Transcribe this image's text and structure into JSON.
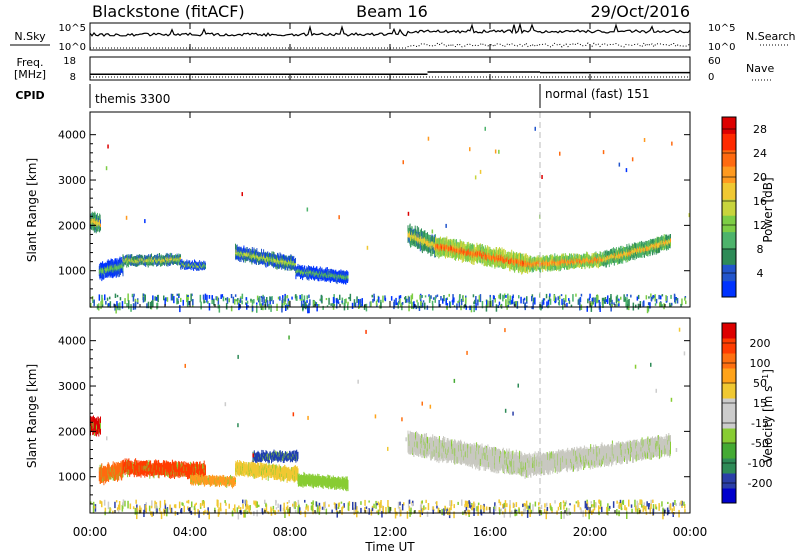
{
  "header": {
    "station": "Blackstone (fitACF)",
    "beam": "Beam 16",
    "date": "29/Oct/2016"
  },
  "time_axis": {
    "ticks": [
      "00:00",
      "04:00",
      "08:00",
      "12:00",
      "16:00",
      "20:00",
      "00:00"
    ],
    "tick_hours": [
      0,
      4,
      8,
      12,
      16,
      20,
      24
    ],
    "label": "Time UT",
    "range_hours": [
      0,
      24
    ]
  },
  "strips": {
    "nsky": {
      "left_label": "N.Sky",
      "right_label": "N.Search",
      "left_ticks": [
        "10^5",
        "10^0"
      ],
      "right_ticks": [
        "10^5",
        "10^0"
      ]
    },
    "freq": {
      "left_label_1": "Freq.",
      "left_label_2": "[MHz]",
      "right_label": "Nave",
      "left_ticks": [
        "18",
        "8"
      ],
      "right_ticks": [
        "60",
        "0"
      ],
      "freq_segments": [
        {
          "start": 0.0,
          "end": 13.5,
          "value": 10.5
        },
        {
          "start": 13.5,
          "end": 18.0,
          "value": 11.5
        },
        {
          "start": 18.0,
          "end": 24.0,
          "value": 11.2
        }
      ]
    },
    "cpid": {
      "label": "CPID",
      "modes": [
        {
          "start": 0.0,
          "text": "themis 3300"
        },
        {
          "start": 18.0,
          "text": "normal (fast) 151"
        }
      ]
    }
  },
  "chart_data": [
    {
      "type": "heatmap",
      "parameter": "Power",
      "ylabel": "Slant Range [km]",
      "yticks": [
        1000,
        2000,
        3000,
        4000
      ],
      "ylim": [
        200,
        4500
      ],
      "colorbar": {
        "label": "Power [dB]",
        "ticks": [
          "4",
          "8",
          "12",
          "16",
          "20",
          "24",
          "28"
        ],
        "range": [
          0,
          30
        ],
        "colors": [
          "#0033ff",
          "#2255cc",
          "#2e8b57",
          "#4db36b",
          "#7dcd45",
          "#c8d43c",
          "#f0c832",
          "#ff9a1f",
          "#ff6a10",
          "#ff2a00",
          "#dd0000"
        ]
      },
      "echo_bands": [
        {
          "start": 0.0,
          "end": 0.4,
          "center_start": 2100,
          "center_end": 2050,
          "width": 380,
          "level": 0.55
        },
        {
          "start": 0.35,
          "end": 1.3,
          "center_start": 1000,
          "center_end": 1100,
          "width": 360,
          "level": 0.35
        },
        {
          "start": 1.3,
          "end": 3.6,
          "center_start": 1230,
          "center_end": 1250,
          "width": 220,
          "level": 0.5
        },
        {
          "start": 3.6,
          "end": 4.6,
          "center_start": 1150,
          "center_end": 1100,
          "width": 160,
          "level": 0.4
        },
        {
          "start": 5.8,
          "end": 8.2,
          "center_start": 1400,
          "center_end": 1150,
          "width": 300,
          "level": 0.45
        },
        {
          "start": 8.2,
          "end": 10.3,
          "center_start": 1000,
          "center_end": 850,
          "width": 250,
          "level": 0.35
        },
        {
          "start": 12.7,
          "end": 13.8,
          "center_start": 1800,
          "center_end": 1550,
          "width": 450,
          "level": 0.55
        },
        {
          "start": 13.8,
          "end": 17.5,
          "center_start": 1550,
          "center_end": 1150,
          "width": 400,
          "level": 0.75
        },
        {
          "start": 17.5,
          "end": 20.5,
          "center_start": 1150,
          "center_end": 1250,
          "width": 300,
          "level": 0.7
        },
        {
          "start": 20.5,
          "end": 23.2,
          "center_start": 1250,
          "center_end": 1650,
          "width": 320,
          "level": 0.6
        }
      ]
    },
    {
      "type": "heatmap",
      "parameter": "Velocity",
      "ylabel": "Slant Range [km]",
      "yticks": [
        1000,
        2000,
        3000,
        4000
      ],
      "ylim": [
        200,
        4500
      ],
      "colorbar": {
        "label": "Velocity [m s^-1]",
        "ticks": [
          "200",
          "100",
          "50",
          "15",
          "-15",
          "-50",
          "-100",
          "-200"
        ],
        "colors": [
          "#0000cc",
          "#2b3fa8",
          "#2e8b57",
          "#44aa33",
          "#88cc33",
          "#cccccc",
          "#cccccc",
          "#f0c832",
          "#ffa31a",
          "#ff7010",
          "#ff3c00",
          "#dd0000"
        ]
      },
      "echo_bands": [
        {
          "start": 0.0,
          "end": 0.4,
          "center_start": 2150,
          "center_end": 2100,
          "width": 380,
          "color": "#dd0000"
        },
        {
          "start": 0.35,
          "end": 1.3,
          "center_start": 1050,
          "center_end": 1150,
          "width": 380,
          "color": "#ff6a10"
        },
        {
          "start": 1.3,
          "end": 4.6,
          "center_start": 1200,
          "center_end": 1150,
          "width": 330,
          "color": "#ff3c00"
        },
        {
          "start": 4.0,
          "end": 5.8,
          "center_start": 950,
          "center_end": 900,
          "width": 200,
          "color": "#ff9a1f"
        },
        {
          "start": 5.8,
          "end": 8.3,
          "center_start": 1200,
          "center_end": 1050,
          "width": 300,
          "color": "#f0c832"
        },
        {
          "start": 6.5,
          "end": 8.3,
          "center_start": 1450,
          "center_end": 1450,
          "width": 200,
          "color": "#1f3fb0"
        },
        {
          "start": 8.3,
          "end": 10.3,
          "center_start": 950,
          "center_end": 850,
          "width": 250,
          "color": "#88cc33"
        },
        {
          "start": 12.7,
          "end": 17.5,
          "center_start": 1750,
          "center_end": 1250,
          "width": 500,
          "color": "#c8c8c0"
        },
        {
          "start": 17.5,
          "end": 23.2,
          "center_start": 1250,
          "center_end": 1700,
          "width": 450,
          "color": "#c8c8c0"
        }
      ],
      "ground_scatter_color": "#f0c832"
    }
  ]
}
